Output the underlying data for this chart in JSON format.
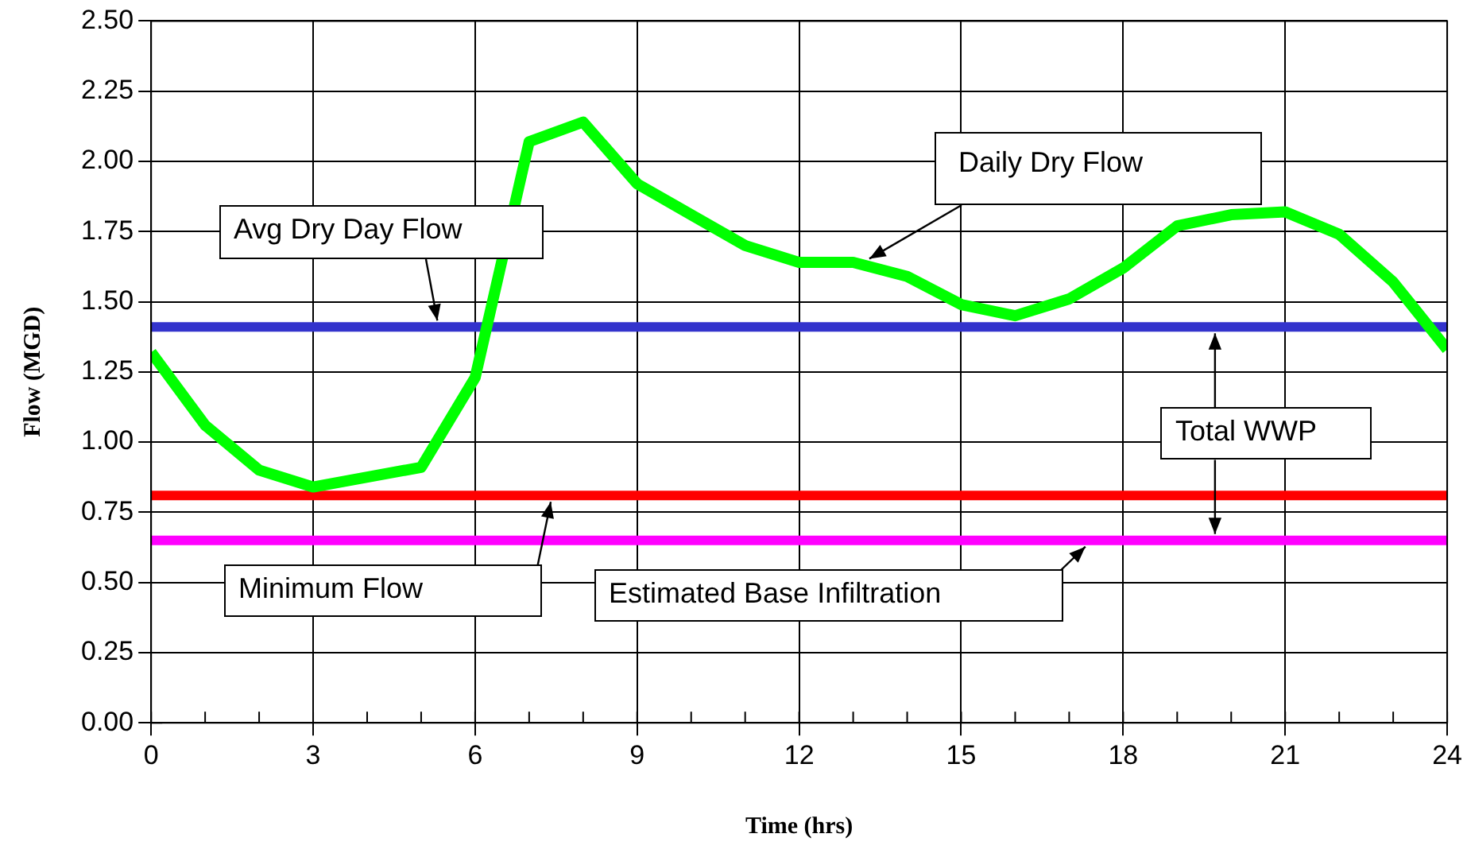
{
  "chart_data": {
    "type": "line",
    "xlabel": "Time (hrs)",
    "ylabel": "Flow (MGD)",
    "xlim": [
      0,
      24
    ],
    "xticks": [
      0,
      3,
      6,
      9,
      12,
      15,
      18,
      21,
      24
    ],
    "ylim": [
      0,
      2.5
    ],
    "yticks": [
      {
        "value": 0,
        "label": "0.00"
      },
      {
        "value": 0.25,
        "label": "0.25"
      },
      {
        "value": 0.5,
        "label": "0.50"
      },
      {
        "value": 0.75,
        "label": "0.75"
      },
      {
        "value": 1,
        "label": "1.00"
      },
      {
        "value": 1.25,
        "label": "1.25"
      },
      {
        "value": 1.5,
        "label": "1.50"
      },
      {
        "value": 1.75,
        "label": "1.75"
      },
      {
        "value": 2,
        "label": "2.00"
      },
      {
        "value": 2.25,
        "label": "2.25"
      },
      {
        "value": 2.5,
        "label": "2.50"
      }
    ],
    "grid": true,
    "legend": false,
    "marker": "none",
    "line_style": "solid",
    "series": [
      {
        "name": "Daily Dry Flow",
        "color": "#00ff00",
        "x": [
          0,
          1,
          2,
          3,
          5,
          6,
          7,
          8,
          9,
          10,
          11,
          12,
          13,
          14,
          15,
          16,
          17,
          18,
          19,
          20,
          21,
          22,
          23,
          24
        ],
        "values": [
          1.32,
          1.06,
          0.9,
          0.84,
          0.91,
          1.23,
          2.07,
          2.14,
          1.92,
          1.81,
          1.7,
          1.64,
          1.64,
          1.59,
          1.49,
          1.45,
          1.51,
          1.62,
          1.77,
          1.81,
          1.82,
          1.74,
          1.57,
          1.33
        ]
      }
    ],
    "ref_lines": [
      {
        "axis": "y",
        "value": 1.41,
        "label": "Avg Dry Day Flow",
        "color": "#3333cc"
      },
      {
        "axis": "y",
        "value": 0.81,
        "label": "Minimum Flow",
        "color": "#ff0000"
      },
      {
        "axis": "y",
        "value": 0.65,
        "label": "Estimated Base Infiltration",
        "color": "#ff00ff"
      }
    ],
    "annotations": [
      {
        "text": "Total WWP",
        "x": 19.7,
        "y": 1.41
      }
    ]
  }
}
